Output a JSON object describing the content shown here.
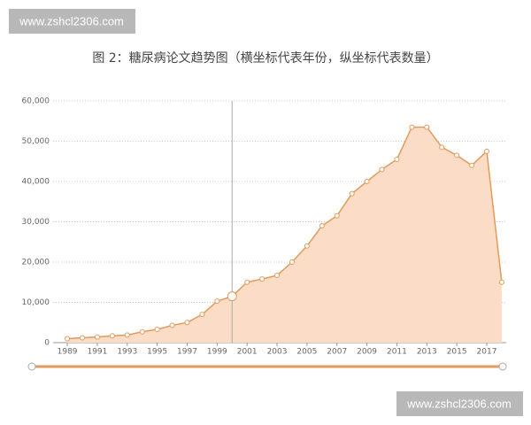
{
  "chart_data": {
    "type": "area",
    "title": "图 2：糖尿病论文趋势图（横坐标代表年份，纵坐标代表数量）",
    "watermarks": [
      "www.zshcl2306.com",
      "www.zshcl2306.com"
    ],
    "x": [
      1989,
      1990,
      1991,
      1992,
      1993,
      1994,
      1995,
      1996,
      1997,
      1998,
      1999,
      2000,
      2001,
      2002,
      2003,
      2004,
      2005,
      2006,
      2007,
      2008,
      2009,
      2010,
      2011,
      2012,
      2013,
      2014,
      2015,
      2016,
      2017,
      2018
    ],
    "series": [
      {
        "color": "#e39a5a",
        "fill": "#fbdcc6",
        "values": [
          1000,
          1200,
          1400,
          1700,
          1900,
          2700,
          3300,
          4300,
          5000,
          7000,
          10300,
          11500,
          15000,
          15800,
          16700,
          20000,
          24000,
          29000,
          31500,
          37000,
          40000,
          43000,
          45500,
          53500,
          53500,
          48500,
          46500,
          44000,
          47500,
          15000
        ]
      }
    ],
    "xlim": [
      1988.05,
      2018.3
    ],
    "xticks": [
      1989,
      1991,
      1993,
      1995,
      1997,
      1999,
      2001,
      2003,
      2005,
      2007,
      2009,
      2011,
      2013,
      2015,
      2017
    ],
    "ylim": [
      0,
      60000
    ],
    "yticks": [
      0,
      {
        "value": 10000,
        "label": "10,000"
      },
      {
        "value": 20000,
        "label": "20,000"
      },
      {
        "value": 30000,
        "label": "30,000"
      },
      {
        "value": 40000,
        "label": "40,000"
      },
      {
        "value": 50000,
        "label": "50,000"
      },
      {
        "value": 60000,
        "label": "60,000"
      }
    ],
    "grid": true,
    "cursor_x": 2000
  }
}
